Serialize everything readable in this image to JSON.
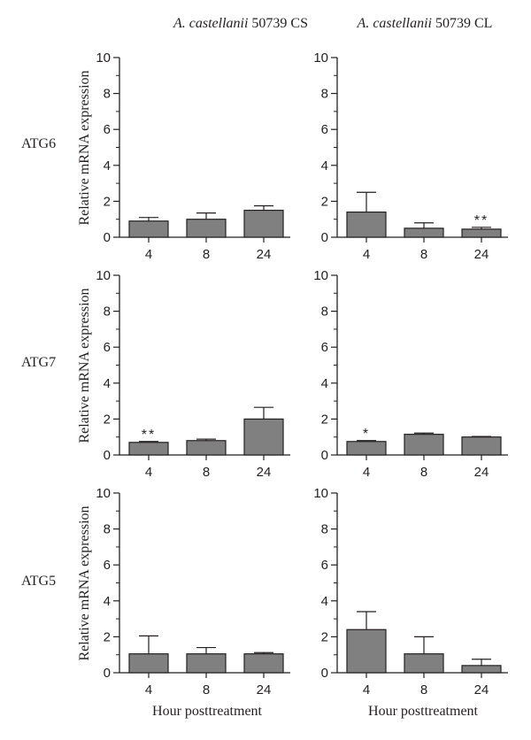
{
  "columns": [
    {
      "species": "A. castellanii",
      "strain": " 50739 CS"
    },
    {
      "species": "A. castellanii",
      "strain": " 50739 CL"
    }
  ],
  "rows": [
    "ATG6",
    "ATG7",
    "ATG5"
  ],
  "ylabel": "Relative mRNA expression",
  "xlabel": "Hour posttreatment",
  "colors": {
    "bar": "#808080",
    "axis": "#231f20"
  },
  "chart_data": [
    {
      "type": "bar",
      "gene": "ATG6",
      "strain": "A. castellanii 50739 CS",
      "categories": [
        "4",
        "8",
        "24"
      ],
      "values": [
        0.9,
        1.0,
        1.5
      ],
      "errors": [
        0.2,
        0.35,
        0.25
      ],
      "significance": [
        "",
        "",
        ""
      ],
      "ylim": [
        0,
        10
      ],
      "yticks": [
        0,
        2,
        4,
        6,
        8,
        10
      ],
      "ylabel": "Relative mRNA expression",
      "xlabel": ""
    },
    {
      "type": "bar",
      "gene": "ATG6",
      "strain": "A. castellanii 50739 CL",
      "categories": [
        "4",
        "8",
        "24"
      ],
      "values": [
        1.4,
        0.5,
        0.45
      ],
      "errors": [
        1.1,
        0.3,
        0.1
      ],
      "significance": [
        "",
        "",
        "**"
      ],
      "ylim": [
        0,
        10
      ],
      "yticks": [
        0,
        2,
        4,
        6,
        8,
        10
      ],
      "ylabel": "",
      "xlabel": ""
    },
    {
      "type": "bar",
      "gene": "ATG7",
      "strain": "A. castellanii 50739 CS",
      "categories": [
        "4",
        "8",
        "24"
      ],
      "values": [
        0.7,
        0.8,
        2.0
      ],
      "errors": [
        0.05,
        0.08,
        0.65
      ],
      "significance": [
        "**",
        "",
        ""
      ],
      "ylim": [
        0,
        10
      ],
      "yticks": [
        0,
        2,
        4,
        6,
        8,
        10
      ],
      "ylabel": "Relative mRNA expression",
      "xlabel": ""
    },
    {
      "type": "bar",
      "gene": "ATG7",
      "strain": "A. castellanii 50739 CL",
      "categories": [
        "4",
        "8",
        "24"
      ],
      "values": [
        0.75,
        1.15,
        1.0
      ],
      "errors": [
        0.05,
        0.07,
        0.03
      ],
      "significance": [
        "*",
        "",
        ""
      ],
      "ylim": [
        0,
        10
      ],
      "yticks": [
        0,
        2,
        4,
        6,
        8,
        10
      ],
      "ylabel": "",
      "xlabel": ""
    },
    {
      "type": "bar",
      "gene": "ATG5",
      "strain": "A. castellanii 50739 CS",
      "categories": [
        "4",
        "8",
        "24"
      ],
      "values": [
        1.05,
        1.05,
        1.05
      ],
      "errors": [
        1.0,
        0.35,
        0.07
      ],
      "significance": [
        "",
        "",
        ""
      ],
      "ylim": [
        0,
        10
      ],
      "yticks": [
        0,
        2,
        4,
        6,
        8,
        10
      ],
      "ylabel": "Relative mRNA expression",
      "xlabel": "Hour posttreatment"
    },
    {
      "type": "bar",
      "gene": "ATG5",
      "strain": "A. castellanii 50739 CL",
      "categories": [
        "4",
        "8",
        "24"
      ],
      "values": [
        2.4,
        1.05,
        0.4
      ],
      "errors": [
        1.0,
        0.95,
        0.35
      ],
      "significance": [
        "",
        "",
        ""
      ],
      "ylim": [
        0,
        10
      ],
      "yticks": [
        0,
        2,
        4,
        6,
        8,
        10
      ],
      "ylabel": "",
      "xlabel": "Hour posttreatment"
    }
  ]
}
